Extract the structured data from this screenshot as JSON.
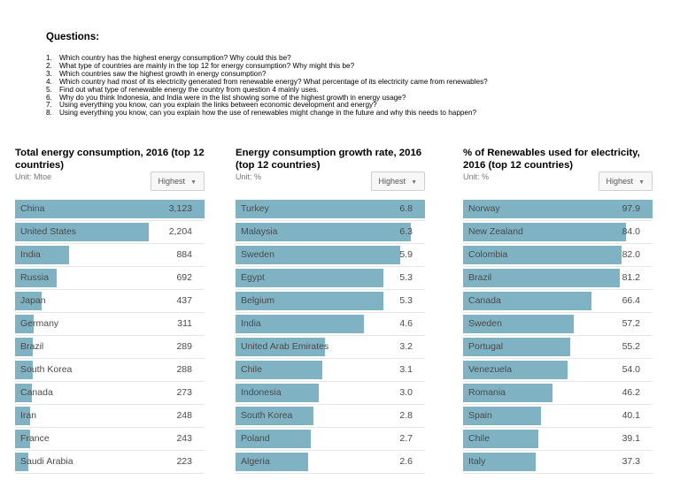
{
  "questions": {
    "title": "Questions:",
    "items": [
      {
        "num": "1.",
        "text": "Which country has the highest energy consumption? Why could this be?"
      },
      {
        "num": "2.",
        "text": "What type of countries are mainly in the top 12 for energy consumption? Why might this be?"
      },
      {
        "num": "3.",
        "text": "Which countries saw the highest growth in energy consumption?"
      },
      {
        "num": "4.",
        "text": "Which country had most of its electricity generated from renewable energy? What percentage of its electricity came from renewables?"
      },
      {
        "num": "5.",
        "text": "Find out what type of renewable energy the country from question 4 mainly uses."
      },
      {
        "num": "6.",
        "text": "Why do you think Indonesia, and India were in the list showing some of the highest growth in energy usage?"
      },
      {
        "num": "7.",
        "text": "Using everything you know, can you explain the links between economic development and energy?"
      },
      {
        "num": "8.",
        "text": "Using everything you know, can you explain how the use of renewables might change in the future and why this needs to happen?"
      }
    ]
  },
  "colors": {
    "bar": "#7fb2c3"
  },
  "chart_data": [
    {
      "type": "bar",
      "title": "Total energy consumption, 2016 (top 12 countries)",
      "unit": "Unit: Mtoe",
      "sort_label": "Highest",
      "values_text": [
        "3,123",
        "2,204",
        "884",
        "692",
        "437",
        "311",
        "289",
        "288",
        "273",
        "248",
        "243",
        "223"
      ],
      "categories": [
        "China",
        "United States",
        "India",
        "Russia",
        "Japan",
        "Germany",
        "Brazil",
        "South Korea",
        "Canada",
        "Iran",
        "France",
        "Saudi Arabia"
      ],
      "values": [
        3123,
        2204,
        884,
        692,
        437,
        311,
        289,
        288,
        273,
        248,
        243,
        223
      ],
      "xlim": [
        0,
        3123
      ]
    },
    {
      "type": "bar",
      "title": "Energy consumption growth rate, 2016 (top 12 countries)",
      "unit": "Unit: %",
      "sort_label": "Highest",
      "values_text": [
        "6.8",
        "6.3",
        "5.9",
        "5.3",
        "5.3",
        "4.6",
        "3.2",
        "3.1",
        "3.0",
        "2.8",
        "2.7",
        "2.6"
      ],
      "categories": [
        "Turkey",
        "Malaysia",
        "Sweden",
        "Egypt",
        "Belgium",
        "India",
        "United Arab Emirates",
        "Chile",
        "Indonesia",
        "South Korea",
        "Poland",
        "Algeria"
      ],
      "values": [
        6.8,
        6.3,
        5.9,
        5.3,
        5.3,
        4.6,
        3.2,
        3.1,
        3.0,
        2.8,
        2.7,
        2.6
      ],
      "xlim": [
        0,
        6.8
      ]
    },
    {
      "type": "bar",
      "title": "% of Renewables used for electricity, 2016 (top 12 countries)",
      "unit": "Unit: %",
      "sort_label": "Highest",
      "values_text": [
        "97.9",
        "84.0",
        "82.0",
        "81.2",
        "66.4",
        "57.2",
        "55.2",
        "54.0",
        "46.2",
        "40.1",
        "39.1",
        "37.3"
      ],
      "categories": [
        "Norway",
        "New Zealand",
        "Colombia",
        "Brazil",
        "Canada",
        "Sweden",
        "Portugal",
        "Venezuela",
        "Romania",
        "Spain",
        "Chile",
        "Italy"
      ],
      "values": [
        97.9,
        84.0,
        82.0,
        81.2,
        66.4,
        57.2,
        55.2,
        54.0,
        46.2,
        40.1,
        39.1,
        37.3
      ],
      "xlim": [
        0,
        97.9
      ]
    }
  ]
}
